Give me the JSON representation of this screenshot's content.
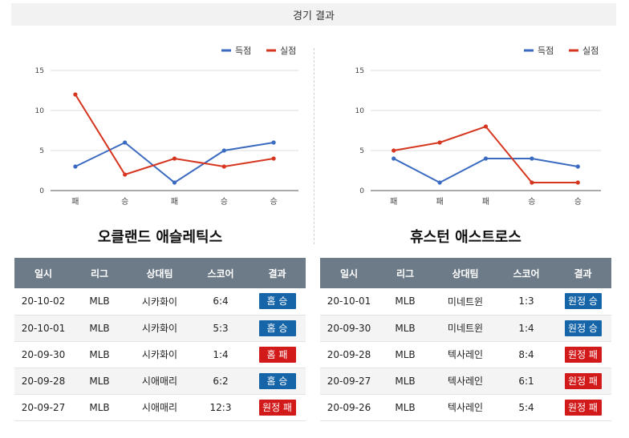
{
  "header": {
    "title": "경기 결과"
  },
  "colors": {
    "scored": "#3a6bc0",
    "allowed": "#d6361f",
    "win_badge": "#1565a8",
    "loss_badge": "#d21a1a",
    "th_bg": "#6d7b88"
  },
  "chart_data": [
    {
      "type": "line",
      "categories": [
        "패",
        "승",
        "패",
        "승",
        "승"
      ],
      "series": [
        {
          "name": "득점",
          "values": [
            3,
            6,
            1,
            5,
            6
          ]
        },
        {
          "name": "실점",
          "values": [
            12,
            2,
            4,
            3,
            4
          ]
        }
      ],
      "ylim": [
        0,
        15
      ],
      "yticks": [
        "0",
        "5",
        "10",
        "15"
      ],
      "grid": true,
      "legend": "top-right"
    },
    {
      "type": "line",
      "categories": [
        "패",
        "패",
        "패",
        "승",
        "승"
      ],
      "series": [
        {
          "name": "득점",
          "values": [
            4,
            1,
            4,
            4,
            3
          ]
        },
        {
          "name": "실점",
          "values": [
            5,
            6,
            8,
            1,
            1
          ]
        }
      ],
      "ylim": [
        0,
        15
      ],
      "yticks": [
        "0",
        "5",
        "10",
        "15"
      ],
      "grid": true,
      "legend": "top-right"
    }
  ],
  "teams": [
    {
      "name": "오클랜드 애슬레틱스",
      "columns": [
        "일시",
        "리그",
        "상대팀",
        "스코어",
        "결과"
      ],
      "rows": [
        {
          "date": "20-10-02",
          "league": "MLB",
          "opponent": "시카화이",
          "score": "6:4",
          "result": "홈 승",
          "win": true
        },
        {
          "date": "20-10-01",
          "league": "MLB",
          "opponent": "시카화이",
          "score": "5:3",
          "result": "홈 승",
          "win": true
        },
        {
          "date": "20-09-30",
          "league": "MLB",
          "opponent": "시카화이",
          "score": "1:4",
          "result": "홈 패",
          "win": false
        },
        {
          "date": "20-09-28",
          "league": "MLB",
          "opponent": "시애매리",
          "score": "6:2",
          "result": "홈 승",
          "win": true
        },
        {
          "date": "20-09-27",
          "league": "MLB",
          "opponent": "시애매리",
          "score": "12:3",
          "result": "원정 패",
          "win": false
        }
      ]
    },
    {
      "name": "휴스턴 애스트로스",
      "columns": [
        "일시",
        "리그",
        "상대팀",
        "스코어",
        "결과"
      ],
      "rows": [
        {
          "date": "20-10-01",
          "league": "MLB",
          "opponent": "미네트윈",
          "score": "1:3",
          "result": "원정 승",
          "win": true
        },
        {
          "date": "20-09-30",
          "league": "MLB",
          "opponent": "미네트윈",
          "score": "1:4",
          "result": "원정 승",
          "win": true
        },
        {
          "date": "20-09-28",
          "league": "MLB",
          "opponent": "텍사레인",
          "score": "8:4",
          "result": "원정 패",
          "win": false
        },
        {
          "date": "20-09-27",
          "league": "MLB",
          "opponent": "텍사레인",
          "score": "6:1",
          "result": "원정 패",
          "win": false
        },
        {
          "date": "20-09-26",
          "league": "MLB",
          "opponent": "텍사레인",
          "score": "5:4",
          "result": "원정 패",
          "win": false
        }
      ]
    }
  ]
}
